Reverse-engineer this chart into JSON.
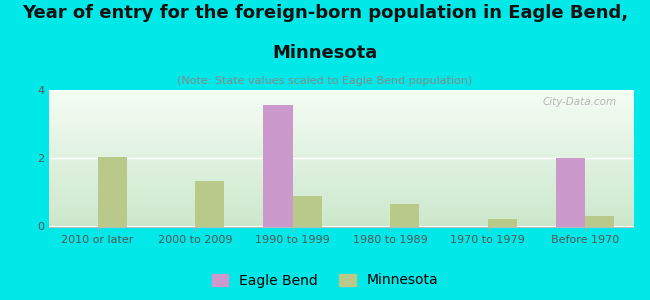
{
  "title_line1": "Year of entry for the foreign-born population in Eagle Bend,",
  "title_line2": "Minnesota",
  "subtitle": "(Note: State values scaled to Eagle Bend population)",
  "categories": [
    "2010 or later",
    "2000 to 2009",
    "1990 to 1999",
    "1980 to 1989",
    "1970 to 1979",
    "Before 1970"
  ],
  "eagle_bend": [
    0,
    0,
    3.55,
    0,
    0,
    2.0
  ],
  "minnesota": [
    2.03,
    1.32,
    0.88,
    0.65,
    0.22,
    0.3
  ],
  "eagle_bend_color": "#cc99cc",
  "minnesota_color": "#b8c98a",
  "fig_bg_color": "#00e8e8",
  "plot_bg_top": "#f5fdf5",
  "plot_bg_bottom": "#cce8cc",
  "ylim": [
    0,
    4
  ],
  "yticks": [
    0,
    2,
    4
  ],
  "bar_width": 0.3,
  "watermark": "City-Data.com",
  "title_fontsize": 13,
  "subtitle_fontsize": 8,
  "tick_fontsize": 8,
  "legend_fontsize": 10
}
